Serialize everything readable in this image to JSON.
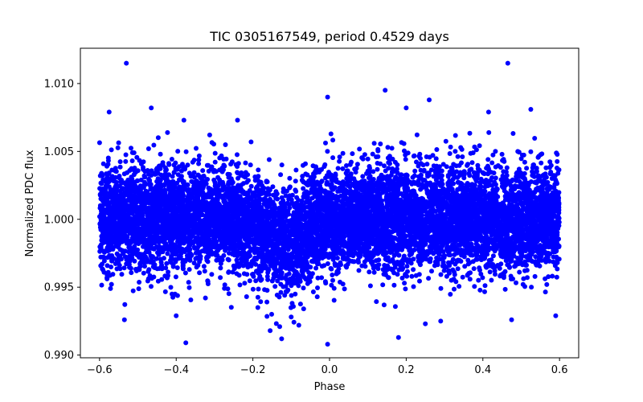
{
  "chart_data": {
    "type": "scatter",
    "title": "TIC 0305167549, period 0.4529 days",
    "xlabel": "Phase",
    "ylabel": "Normalized PDC flux",
    "xlim": [
      -0.65,
      0.65
    ],
    "ylim": [
      0.9898,
      1.0126
    ],
    "x_ticks": [
      -0.6,
      -0.4,
      -0.2,
      0.0,
      0.2,
      0.4,
      0.6
    ],
    "x_tick_labels": [
      "−0.6",
      "−0.4",
      "−0.2",
      "0.0",
      "0.2",
      "0.4",
      "0.6"
    ],
    "y_ticks": [
      0.99,
      0.995,
      1.0,
      1.005,
      1.01
    ],
    "y_tick_labels": [
      "0.990",
      "0.995",
      "1.000",
      "1.005",
      "1.010"
    ],
    "grid": false,
    "legend": "none",
    "marker_color": "#0000ff",
    "series": [
      {
        "name": "flux",
        "phase_range": [
          -0.6,
          0.6
        ],
        "baseline_flux": 1.0,
        "noise_sigma": 0.0019,
        "dip_center_phase": -0.12,
        "dip_depth": 0.0017,
        "dip_half_width": 0.07,
        "outliers": [
          [
            -0.53,
            1.0115
          ],
          [
            0.465,
            1.0115
          ],
          [
            0.145,
            1.0095
          ],
          [
            -0.005,
            1.009
          ],
          [
            0.26,
            1.0088
          ],
          [
            -0.465,
            1.0082
          ],
          [
            0.2,
            1.0082
          ],
          [
            0.525,
            1.0081
          ],
          [
            -0.575,
            1.0079
          ],
          [
            0.415,
            1.0079
          ],
          [
            -0.38,
            1.0073
          ],
          [
            -0.24,
            1.0073
          ],
          [
            -0.375,
            0.9909
          ],
          [
            -0.005,
            0.9908
          ],
          [
            0.18,
            0.9913
          ],
          [
            -0.125,
            0.9912
          ],
          [
            -0.13,
            0.9921
          ],
          [
            -0.08,
            0.9922
          ],
          [
            -0.155,
            0.9918
          ],
          [
            0.25,
            0.9923
          ],
          [
            0.29,
            0.9925
          ],
          [
            0.475,
            0.9926
          ],
          [
            -0.535,
            0.9926
          ],
          [
            0.59,
            0.9929
          ],
          [
            -0.4,
            0.9929
          ]
        ]
      }
    ]
  }
}
